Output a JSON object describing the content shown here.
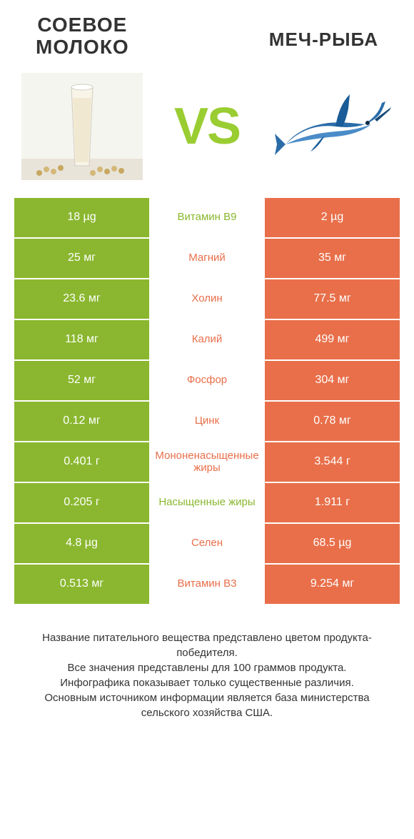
{
  "colors": {
    "green": "#8ab72f",
    "orange": "#e86f4a",
    "midGreen": "#8ab72f",
    "midOrange": "#e86f4a",
    "bg": "#ffffff"
  },
  "header": {
    "left_line1": "СОЕВОЕ",
    "left_line2": "МОЛОКО",
    "right": "МЕЧ-РЫБА",
    "vs": "VS"
  },
  "rows": [
    {
      "left": "18 µg",
      "mid": "Витамин B9",
      "right": "2 µg",
      "winner": "left"
    },
    {
      "left": "25 мг",
      "mid": "Магний",
      "right": "35 мг",
      "winner": "right"
    },
    {
      "left": "23.6 мг",
      "mid": "Холин",
      "right": "77.5 мг",
      "winner": "right"
    },
    {
      "left": "118 мг",
      "mid": "Калий",
      "right": "499 мг",
      "winner": "right"
    },
    {
      "left": "52 мг",
      "mid": "Фосфор",
      "right": "304 мг",
      "winner": "right"
    },
    {
      "left": "0.12 мг",
      "mid": "Цинк",
      "right": "0.78 мг",
      "winner": "right"
    },
    {
      "left": "0.401 г",
      "mid": "Мононенасыщенные жиры",
      "right": "3.544 г",
      "winner": "right"
    },
    {
      "left": "0.205 г",
      "mid": "Насыщенные жиры",
      "right": "1.911 г",
      "winner": "left"
    },
    {
      "left": "4.8 µg",
      "mid": "Селен",
      "right": "68.5 µg",
      "winner": "right"
    },
    {
      "left": "0.513 мг",
      "mid": "Витамин B3",
      "right": "9.254 мг",
      "winner": "right"
    }
  ],
  "footer": {
    "l1": "Название питательного вещества представлено цветом продукта-победителя.",
    "l2": "Все значения представлены для 100 граммов продукта.",
    "l3": "Инфографика показывает только существенные различия.",
    "l4": "Основным источником информации является база министерства сельского хозяйства США."
  }
}
